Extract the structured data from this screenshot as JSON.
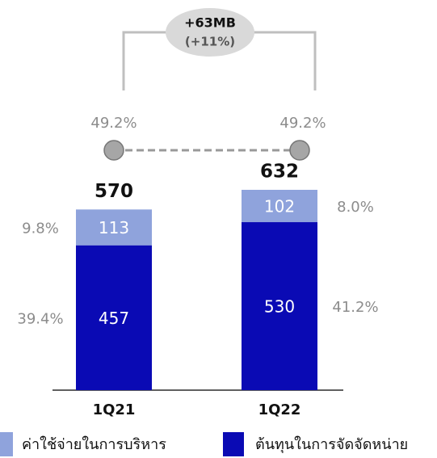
{
  "chart_data": {
    "type": "bar",
    "stacked": true,
    "categories": [
      "1Q21",
      "1Q22"
    ],
    "series": [
      {
        "name": "ต้นทุนในการจัดจัดหน่าย",
        "color": "#0a0ab4",
        "values": [
          457,
          530
        ],
        "percent": [
          39.4,
          41.2
        ],
        "percent_labels": [
          "39.4%",
          "41.2%"
        ]
      },
      {
        "name": "ค่าใช้จ่ายในการบริหาร",
        "color": "#8fa3dc",
        "values": [
          113,
          102
        ],
        "percent": [
          9.8,
          8.0
        ],
        "percent_labels": [
          "9.8%",
          "8.0%"
        ]
      }
    ],
    "totals": [
      570,
      632
    ],
    "line": {
      "values": [
        49.2,
        49.2
      ],
      "value_labels": [
        "49.2%",
        "49.2%"
      ],
      "color": "#888888"
    },
    "annotation": {
      "change": "+63MB",
      "change_percent": "(+11%)"
    }
  }
}
